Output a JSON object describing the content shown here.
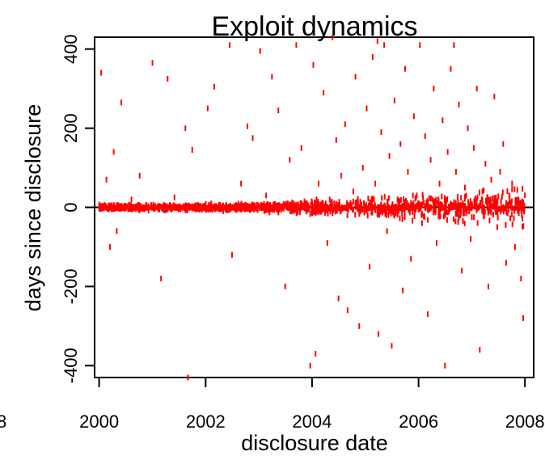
{
  "chart_data": {
    "type": "scatter",
    "title": "Exploit dynamics",
    "xlabel": "disclosure date",
    "ylabel": "days since disclosure",
    "x_axis": {
      "type": "date",
      "xlim": [
        "1999-12-01",
        "2008-03-01"
      ],
      "ticks": [
        "2000",
        "2002",
        "2004",
        "2006",
        "2008"
      ]
    },
    "y_axis": {
      "ylim": [
        -430,
        430
      ],
      "ticks": [
        "-400",
        "-200",
        "0",
        "200",
        "400"
      ]
    },
    "partial_left_tick_label": "8",
    "reference_line": {
      "y": 0,
      "color": "#000000"
    },
    "marker": "short vertical dash",
    "grid": false,
    "legend": "none",
    "series": [
      {
        "color": "#ff0000",
        "points": [
          [
            "2000-01-15",
            340
          ],
          [
            "2000-02-20",
            70
          ],
          [
            "2000-04-10",
            140
          ],
          [
            "2000-06-01",
            265
          ],
          [
            "2000-03-15",
            -100
          ],
          [
            "2000-05-01",
            -60
          ],
          [
            "2000-08-10",
            20
          ],
          [
            "2000-10-05",
            80
          ],
          [
            "2001-01-01",
            365
          ],
          [
            "2001-03-01",
            -180
          ],
          [
            "2001-04-15",
            325
          ],
          [
            "2001-06-01",
            25
          ],
          [
            "2001-08-15",
            200
          ],
          [
            "2001-10-01",
            145
          ],
          [
            "2001-09-01",
            -430
          ],
          [
            "2002-01-15",
            250
          ],
          [
            "2002-03-01",
            305
          ],
          [
            "2002-06-15",
            410
          ],
          [
            "2002-07-01",
            -120
          ],
          [
            "2002-09-01",
            60
          ],
          [
            "2002-10-15",
            205
          ],
          [
            "2002-11-20",
            175
          ],
          [
            "2003-01-10",
            395
          ],
          [
            "2003-02-20",
            30
          ],
          [
            "2003-04-01",
            330
          ],
          [
            "2003-05-15",
            245
          ],
          [
            "2003-07-01",
            -200
          ],
          [
            "2003-08-01",
            120
          ],
          [
            "2003-09-15",
            410
          ],
          [
            "2003-10-20",
            150
          ],
          [
            "2003-11-10",
            15
          ],
          [
            "2003-12-20",
            -400
          ],
          [
            "2004-01-10",
            360
          ],
          [
            "2004-01-25",
            -370
          ],
          [
            "2004-02-15",
            60
          ],
          [
            "2004-03-20",
            290
          ],
          [
            "2004-04-15",
            -90
          ],
          [
            "2004-05-20",
            430
          ],
          [
            "2004-06-15",
            170
          ],
          [
            "2004-07-01",
            -230
          ],
          [
            "2004-07-20",
            80
          ],
          [
            "2004-08-15",
            210
          ],
          [
            "2004-09-01",
            -260
          ],
          [
            "2004-10-10",
            40
          ],
          [
            "2004-10-25",
            330
          ],
          [
            "2004-11-20",
            -300
          ],
          [
            "2004-12-15",
            100
          ],
          [
            "2005-01-10",
            250
          ],
          [
            "2005-01-30",
            -150
          ],
          [
            "2005-02-20",
            380
          ],
          [
            "2005-03-10",
            60
          ],
          [
            "2005-04-01",
            -320
          ],
          [
            "2005-04-20",
            190
          ],
          [
            "2005-05-10",
            410
          ],
          [
            "2005-05-30",
            -60
          ],
          [
            "2005-06-15",
            130
          ],
          [
            "2005-07-01",
            -350
          ],
          [
            "2005-07-20",
            270
          ],
          [
            "2005-08-10",
            20
          ],
          [
            "2005-08-30",
            160
          ],
          [
            "2005-09-15",
            -210
          ],
          [
            "2005-10-01",
            350
          ],
          [
            "2005-10-20",
            90
          ],
          [
            "2005-11-10",
            -130
          ],
          [
            "2005-11-30",
            230
          ],
          [
            "2005-12-20",
            30
          ],
          [
            "2006-01-10",
            410
          ],
          [
            "2006-01-25",
            -40
          ],
          [
            "2006-02-15",
            180
          ],
          [
            "2006-03-05",
            -270
          ],
          [
            "2006-03-25",
            120
          ],
          [
            "2006-04-15",
            300
          ],
          [
            "2006-05-05",
            -90
          ],
          [
            "2006-05-25",
            60
          ],
          [
            "2006-06-15",
            220
          ],
          [
            "2006-07-01",
            -400
          ],
          [
            "2006-07-20",
            140
          ],
          [
            "2006-08-10",
            350
          ],
          [
            "2006-08-30",
            -30
          ],
          [
            "2006-09-15",
            90
          ],
          [
            "2006-10-05",
            260
          ],
          [
            "2006-10-25",
            -160
          ],
          [
            "2006-11-15",
            50
          ],
          [
            "2006-12-05",
            200
          ],
          [
            "2006-12-25",
            -80
          ],
          [
            "2007-01-15",
            150
          ],
          [
            "2007-02-05",
            300
          ],
          [
            "2007-02-25",
            -360
          ],
          [
            "2007-03-15",
            40
          ],
          [
            "2007-04-05",
            110
          ],
          [
            "2007-04-25",
            -200
          ],
          [
            "2007-05-15",
            70
          ],
          [
            "2007-06-05",
            280
          ],
          [
            "2007-06-25",
            -50
          ],
          [
            "2007-07-15",
            90
          ],
          [
            "2007-08-05",
            160
          ],
          [
            "2007-08-25",
            -140
          ],
          [
            "2007-09-15",
            30
          ],
          [
            "2007-10-05",
            60
          ],
          [
            "2007-10-25",
            -100
          ],
          [
            "2007-11-15",
            20
          ],
          [
            "2007-12-05",
            -180
          ],
          [
            "2007-12-20",
            -280
          ],
          [
            "2006-09-01",
            410
          ],
          [
            "2005-03-25",
            420
          ],
          [
            "2004-02-01",
            20
          ],
          [
            "2004-06-01",
            10
          ],
          [
            "2005-06-01",
            15
          ],
          [
            "2006-02-01",
            25
          ],
          [
            "2006-11-01",
            10
          ],
          [
            "2007-03-01",
            12
          ],
          [
            "2003-03-01",
            8
          ],
          [
            "2002-05-01",
            5
          ],
          [
            "2001-05-01",
            6
          ],
          [
            "2000-07-01",
            4
          ]
        ]
      }
    ],
    "dense_band": {
      "near_y": 0,
      "from": "2000-01-01",
      "to": "2008-01-01"
    }
  }
}
